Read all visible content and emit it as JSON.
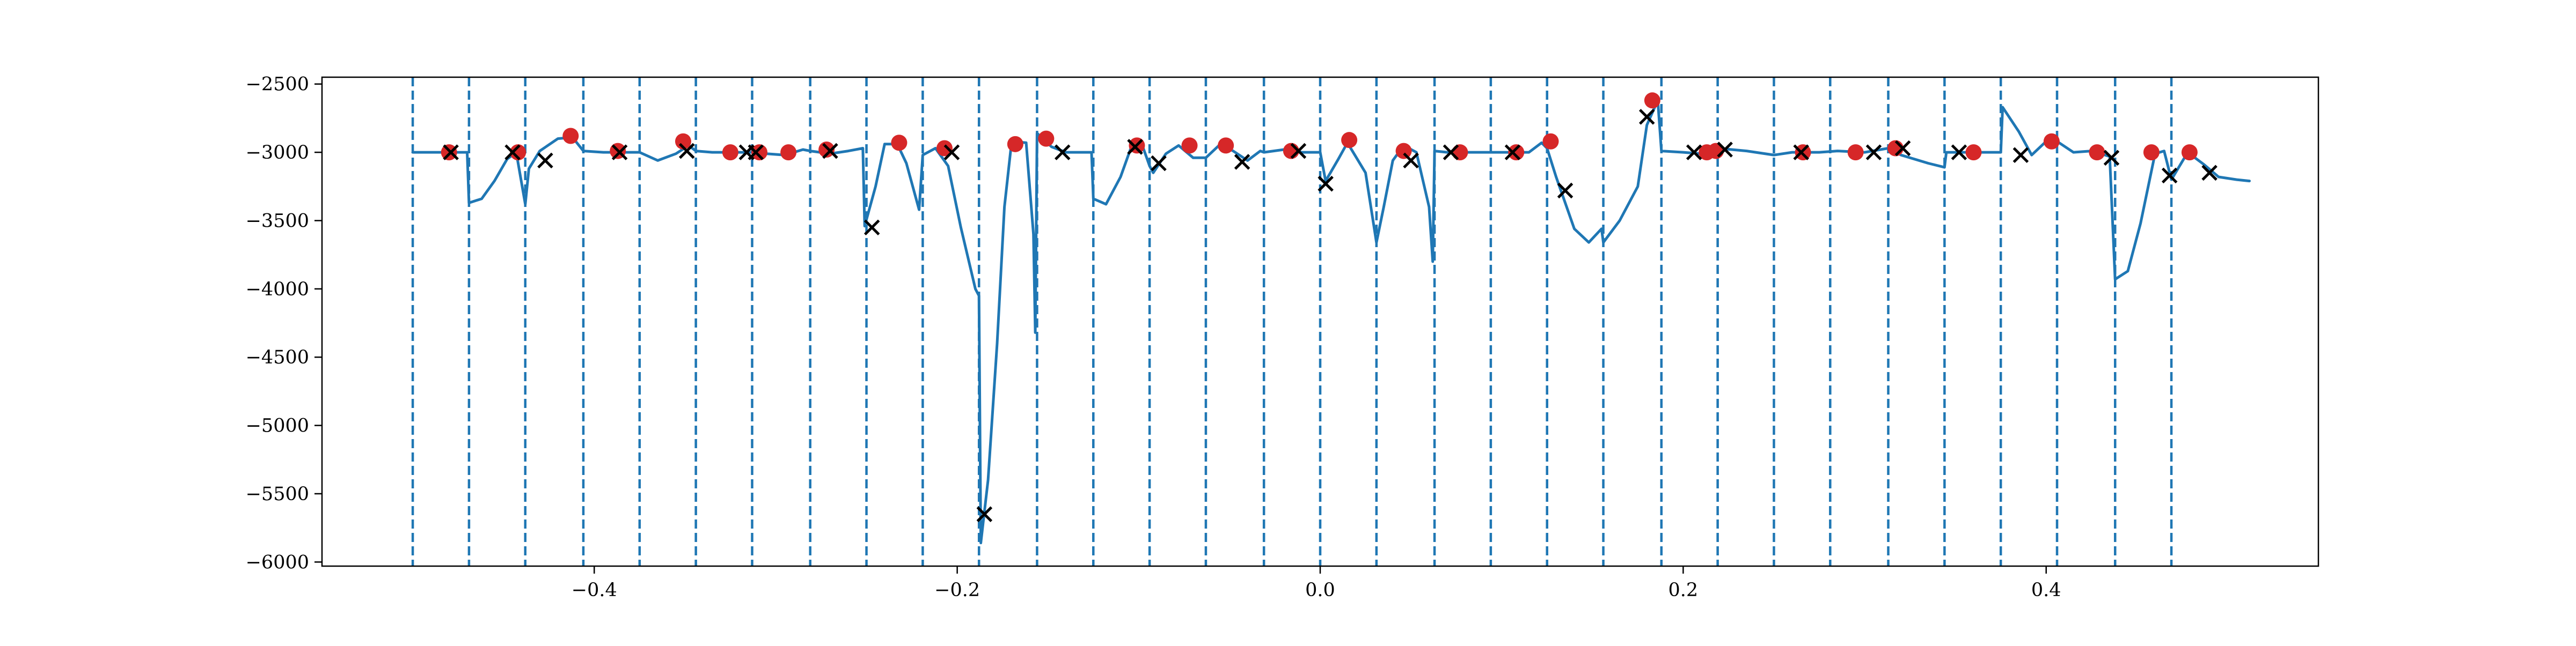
{
  "chart_data": {
    "type": "line",
    "title": "",
    "xlabel": "",
    "ylabel": "",
    "xlim": [
      -0.55,
      0.55
    ],
    "ylim": [
      -6030,
      -2450
    ],
    "x_ticks": [
      {
        "value": -0.4,
        "label": "−0.4"
      },
      {
        "value": -0.2,
        "label": "−0.2"
      },
      {
        "value": 0.0,
        "label": "0.0"
      },
      {
        "value": 0.2,
        "label": "0.2"
      },
      {
        "value": 0.4,
        "label": "0.4"
      }
    ],
    "y_ticks": [
      {
        "value": -2500,
        "label": "−2500"
      },
      {
        "value": -3000,
        "label": "−3000"
      },
      {
        "value": -3500,
        "label": "−3500"
      },
      {
        "value": -4000,
        "label": "−4000"
      },
      {
        "value": -4500,
        "label": "−4500"
      },
      {
        "value": -5000,
        "label": "−5000"
      },
      {
        "value": -5500,
        "label": "−5500"
      },
      {
        "value": -6000,
        "label": "−6000"
      }
    ],
    "grid": false,
    "legend": "none",
    "colors": {
      "line": "#1f77b4",
      "vlines": "#1f77b4",
      "dots": "#d62728",
      "crosses": "#000000"
    },
    "vlines": [
      -0.5,
      -0.469,
      -0.438,
      -0.406,
      -0.375,
      -0.344,
      -0.313,
      -0.281,
      -0.25,
      -0.219,
      -0.188,
      -0.156,
      -0.125,
      -0.094,
      -0.063,
      -0.031,
      0.0,
      0.031,
      0.063,
      0.094,
      0.125,
      0.156,
      0.188,
      0.219,
      0.25,
      0.281,
      0.313,
      0.344,
      0.375,
      0.406,
      0.438,
      0.469
    ],
    "series": [
      {
        "values": [
          [
            -0.5,
            -3000
          ],
          [
            -0.485,
            -3000
          ],
          [
            -0.47,
            -3000
          ],
          [
            -0.469,
            -3370
          ],
          [
            -0.462,
            -3340
          ],
          [
            -0.455,
            -3210
          ],
          [
            -0.448,
            -3050
          ],
          [
            -0.443,
            -3000
          ],
          [
            -0.438,
            -3380
          ],
          [
            -0.436,
            -3120
          ],
          [
            -0.43,
            -2990
          ],
          [
            -0.42,
            -2900
          ],
          [
            -0.412,
            -2890
          ],
          [
            -0.406,
            -2990
          ],
          [
            -0.395,
            -3000
          ],
          [
            -0.385,
            -3000
          ],
          [
            -0.375,
            -3000
          ],
          [
            -0.365,
            -3060
          ],
          [
            -0.355,
            -3010
          ],
          [
            -0.348,
            -2950
          ],
          [
            -0.344,
            -2990
          ],
          [
            -0.335,
            -3000
          ],
          [
            -0.315,
            -3000
          ],
          [
            -0.313,
            -3000
          ],
          [
            -0.305,
            -3010
          ],
          [
            -0.295,
            -3020
          ],
          [
            -0.285,
            -2980
          ],
          [
            -0.281,
            -2990
          ],
          [
            -0.27,
            -3010
          ],
          [
            -0.26,
            -2990
          ],
          [
            -0.252,
            -2970
          ],
          [
            -0.251,
            -3540
          ],
          [
            -0.245,
            -3250
          ],
          [
            -0.24,
            -2940
          ],
          [
            -0.233,
            -2940
          ],
          [
            -0.228,
            -3080
          ],
          [
            -0.221,
            -3420
          ],
          [
            -0.219,
            -3020
          ],
          [
            -0.212,
            -2970
          ],
          [
            -0.205,
            -3100
          ],
          [
            -0.198,
            -3550
          ],
          [
            -0.19,
            -4000
          ],
          [
            -0.188,
            -4050
          ],
          [
            -0.187,
            -5860
          ],
          [
            -0.183,
            -5400
          ],
          [
            -0.178,
            -4400
          ],
          [
            -0.174,
            -3400
          ],
          [
            -0.17,
            -2920
          ],
          [
            -0.162,
            -2930
          ],
          [
            -0.158,
            -3600
          ],
          [
            -0.157,
            -4320
          ],
          [
            -0.156,
            -2860
          ],
          [
            -0.148,
            -2960
          ],
          [
            -0.14,
            -3000
          ],
          [
            -0.128,
            -3000
          ],
          [
            -0.126,
            -3000
          ],
          [
            -0.125,
            -3340
          ],
          [
            -0.118,
            -3380
          ],
          [
            -0.11,
            -3180
          ],
          [
            -0.103,
            -2920
          ],
          [
            -0.098,
            -2950
          ],
          [
            -0.094,
            -3100
          ],
          [
            -0.092,
            -3150
          ],
          [
            -0.085,
            -3010
          ],
          [
            -0.078,
            -2950
          ],
          [
            -0.07,
            -3040
          ],
          [
            -0.063,
            -3040
          ],
          [
            -0.055,
            -2940
          ],
          [
            -0.048,
            -2990
          ],
          [
            -0.04,
            -3060
          ],
          [
            -0.033,
            -2990
          ],
          [
            -0.031,
            -3000
          ],
          [
            -0.02,
            -2980
          ],
          [
            -0.01,
            -3000
          ],
          [
            0.0,
            -3000
          ],
          [
            0.003,
            -3210
          ],
          [
            0.01,
            -3050
          ],
          [
            0.015,
            -2930
          ],
          [
            0.025,
            -3150
          ],
          [
            0.031,
            -3660
          ],
          [
            0.035,
            -3400
          ],
          [
            0.04,
            -3060
          ],
          [
            0.046,
            -2950
          ],
          [
            0.053,
            -3000
          ],
          [
            0.06,
            -3400
          ],
          [
            0.062,
            -3800
          ],
          [
            0.063,
            -2990
          ],
          [
            0.07,
            -3000
          ],
          [
            0.085,
            -3000
          ],
          [
            0.094,
            -3000
          ],
          [
            0.105,
            -3000
          ],
          [
            0.115,
            -3000
          ],
          [
            0.122,
            -2930
          ],
          [
            0.125,
            -2970
          ],
          [
            0.13,
            -3180
          ],
          [
            0.14,
            -3560
          ],
          [
            0.148,
            -3660
          ],
          [
            0.155,
            -3560
          ],
          [
            0.156,
            -3660
          ],
          [
            0.165,
            -3500
          ],
          [
            0.175,
            -3250
          ],
          [
            0.18,
            -2800
          ],
          [
            0.186,
            -2620
          ],
          [
            0.188,
            -2990
          ],
          [
            0.2,
            -3000
          ],
          [
            0.21,
            -3010
          ],
          [
            0.219,
            -2970
          ],
          [
            0.235,
            -2990
          ],
          [
            0.25,
            -3020
          ],
          [
            0.26,
            -3000
          ],
          [
            0.275,
            -3000
          ],
          [
            0.285,
            -2990
          ],
          [
            0.3,
            -3000
          ],
          [
            0.313,
            -2970
          ],
          [
            0.32,
            -3020
          ],
          [
            0.335,
            -3080
          ],
          [
            0.344,
            -3110
          ],
          [
            0.345,
            -3000
          ],
          [
            0.36,
            -3000
          ],
          [
            0.375,
            -3000
          ],
          [
            0.376,
            -2670
          ],
          [
            0.385,
            -2850
          ],
          [
            0.392,
            -3020
          ],
          [
            0.4,
            -2920
          ],
          [
            0.406,
            -2920
          ],
          [
            0.415,
            -3000
          ],
          [
            0.425,
            -2990
          ],
          [
            0.435,
            -3030
          ],
          [
            0.438,
            -3930
          ],
          [
            0.445,
            -3870
          ],
          [
            0.452,
            -3520
          ],
          [
            0.46,
            -3010
          ],
          [
            0.465,
            -2990
          ],
          [
            0.469,
            -3200
          ],
          [
            0.478,
            -3000
          ],
          [
            0.487,
            -3090
          ],
          [
            0.495,
            -3180
          ],
          [
            0.505,
            -3200
          ],
          [
            0.512,
            -3210
          ]
        ]
      }
    ],
    "dots": [
      [
        -0.48,
        -3000
      ],
      [
        -0.442,
        -3000
      ],
      [
        -0.413,
        -2880
      ],
      [
        -0.387,
        -2990
      ],
      [
        -0.351,
        -2920
      ],
      [
        -0.325,
        -3000
      ],
      [
        -0.309,
        -3000
      ],
      [
        -0.293,
        -3000
      ],
      [
        -0.272,
        -2980
      ],
      [
        -0.232,
        -2930
      ],
      [
        -0.207,
        -2970
      ],
      [
        -0.168,
        -2940
      ],
      [
        -0.151,
        -2900
      ],
      [
        -0.101,
        -2950
      ],
      [
        -0.072,
        -2950
      ],
      [
        -0.052,
        -2950
      ],
      [
        -0.016,
        -2990
      ],
      [
        0.016,
        -2910
      ],
      [
        0.046,
        -2990
      ],
      [
        0.077,
        -3000
      ],
      [
        0.108,
        -3000
      ],
      [
        0.127,
        -2920
      ],
      [
        0.183,
        -2620
      ],
      [
        0.213,
        -3000
      ],
      [
        0.218,
        -2990
      ],
      [
        0.266,
        -3000
      ],
      [
        0.295,
        -3000
      ],
      [
        0.317,
        -2970
      ],
      [
        0.36,
        -3000
      ],
      [
        0.403,
        -2920
      ],
      [
        0.428,
        -3000
      ],
      [
        0.458,
        -3000
      ],
      [
        0.479,
        -3000
      ]
    ],
    "crosses": [
      [
        -0.479,
        -3000
      ],
      [
        -0.445,
        -3000
      ],
      [
        -0.427,
        -3060
      ],
      [
        -0.386,
        -3000
      ],
      [
        -0.349,
        -2990
      ],
      [
        -0.316,
        -3000
      ],
      [
        -0.311,
        -3000
      ],
      [
        -0.27,
        -2990
      ],
      [
        -0.247,
        -3550
      ],
      [
        -0.203,
        -3000
      ],
      [
        -0.185,
        -5650
      ],
      [
        -0.142,
        -3000
      ],
      [
        -0.102,
        -2960
      ],
      [
        -0.089,
        -3080
      ],
      [
        -0.043,
        -3070
      ],
      [
        -0.012,
        -2990
      ],
      [
        0.003,
        -3230
      ],
      [
        0.05,
        -3060
      ],
      [
        0.072,
        -3000
      ],
      [
        0.106,
        -3000
      ],
      [
        0.135,
        -3280
      ],
      [
        0.18,
        -2740
      ],
      [
        0.206,
        -3000
      ],
      [
        0.223,
        -2980
      ],
      [
        0.265,
        -3000
      ],
      [
        0.305,
        -3000
      ],
      [
        0.321,
        -2970
      ],
      [
        0.352,
        -3000
      ],
      [
        0.386,
        -3020
      ],
      [
        0.436,
        -3040
      ],
      [
        0.468,
        -3170
      ],
      [
        0.49,
        -3150
      ]
    ]
  }
}
